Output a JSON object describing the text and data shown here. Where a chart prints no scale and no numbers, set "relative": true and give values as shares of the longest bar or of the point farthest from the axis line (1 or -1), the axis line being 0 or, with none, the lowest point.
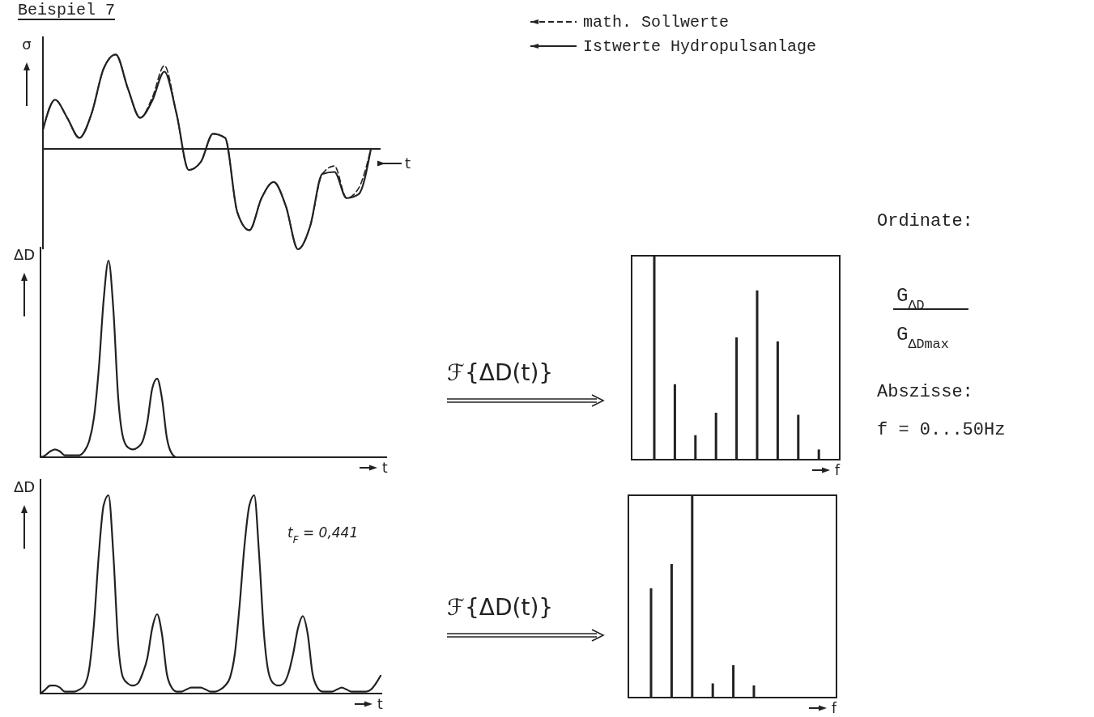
{
  "chart_data": [
    {
      "type": "line",
      "title": "Beispiel 7",
      "ylabel": "σ",
      "xlabel": "t",
      "relative": true,
      "legend": "top right",
      "categories": [
        null,
        null,
        null,
        null,
        null,
        null,
        null,
        null,
        null,
        null,
        null,
        null,
        null,
        null,
        null,
        null,
        null,
        null,
        null,
        null,
        null,
        null,
        null,
        null,
        null,
        null,
        null,
        null
      ],
      "series": [
        {
          "name": "math. Sollwerte",
          "color": "#222222",
          "line_style": "dashed",
          "values": [
            0.19,
            0.49,
            0.31,
            0.11,
            0.35,
            0.8,
            0.94,
            0.6,
            0.31,
            0.51,
            0.83,
            0.35,
            -0.21,
            -0.13,
            0.15,
            0.11,
            -0.63,
            -0.81,
            -0.49,
            -0.33,
            -0.57,
            -1,
            -0.77,
            -0.25,
            -0.17,
            -0.49,
            -0.39,
            0
          ]
        },
        {
          "name": "Istwerte Hydropulsanlage",
          "color": "#222222",
          "line_style": "solid",
          "values": [
            0.19,
            0.49,
            0.31,
            0.11,
            0.35,
            0.8,
            0.94,
            0.6,
            0.31,
            0.48,
            0.77,
            0.35,
            -0.21,
            -0.13,
            0.15,
            0.11,
            -0.63,
            -0.81,
            -0.49,
            -0.33,
            -0.57,
            -1,
            -0.77,
            -0.25,
            -0.23,
            -0.49,
            -0.45,
            0
          ]
        }
      ]
    },
    {
      "type": "line",
      "ylabel": "ΔD",
      "xlabel": "t",
      "relative": true,
      "categories": [
        null,
        null,
        null,
        null,
        null,
        null,
        null,
        null,
        null,
        null,
        null,
        null,
        null,
        null,
        null,
        null,
        null,
        null,
        null,
        null,
        null,
        null,
        null,
        null,
        null,
        null,
        null,
        null,
        null,
        null,
        null,
        null,
        null,
        null,
        null,
        null,
        null,
        null,
        null,
        null,
        null,
        null,
        null,
        null,
        null,
        null,
        null,
        null,
        null,
        null,
        null,
        null,
        null,
        null,
        null,
        null,
        null,
        null,
        null,
        null,
        null,
        null,
        null,
        null,
        null,
        null,
        null,
        null,
        null,
        null,
        null,
        null
      ],
      "series": [
        {
          "color": "#222222",
          "values": [
            0,
            0.01,
            0.03,
            0.04,
            0.03,
            0.01,
            0.01,
            0.01,
            0.01,
            0.03,
            0.08,
            0.2,
            0.45,
            0.8,
            1,
            0.75,
            0.3,
            0.1,
            0.05,
            0.04,
            0.05,
            0.08,
            0.18,
            0.35,
            0.4,
            0.3,
            0.1,
            0.02,
            0,
            0,
            0,
            0,
            0,
            0,
            0,
            0,
            0,
            0,
            0,
            0,
            0,
            0,
            0,
            0,
            0,
            0,
            0,
            0,
            0,
            0,
            0,
            0,
            0,
            0,
            0,
            0,
            0,
            0,
            0,
            0,
            0,
            0,
            0,
            0,
            0,
            0,
            0,
            0,
            0,
            0,
            0,
            0
          ]
        }
      ]
    },
    {
      "type": "line",
      "ylabel": "ΔD",
      "xlabel": "t",
      "relative": true,
      "annotations": [
        "t$_{F}$ = 0,441"
      ],
      "categories": [
        null,
        null,
        null,
        null,
        null,
        null,
        null,
        null,
        null,
        null,
        null,
        null,
        null,
        null,
        null,
        null,
        null,
        null,
        null,
        null,
        null,
        null,
        null,
        null,
        null,
        null,
        null,
        null,
        null,
        null,
        null,
        null,
        null,
        null,
        null,
        null,
        null,
        null,
        null,
        null,
        null,
        null,
        null,
        null,
        null,
        null,
        null,
        null,
        null,
        null,
        null,
        null,
        null,
        null,
        null,
        null,
        null,
        null,
        null,
        null,
        null,
        null,
        null,
        null,
        null,
        null,
        null,
        null,
        null,
        null,
        null
      ],
      "series": [
        {
          "color": "#222222",
          "values": [
            0,
            0.02,
            0.04,
            0.04,
            0.03,
            0.01,
            0.01,
            0.01,
            0.02,
            0.04,
            0.12,
            0.35,
            0.7,
            0.95,
            1,
            0.7,
            0.25,
            0.08,
            0.05,
            0.04,
            0.05,
            0.1,
            0.18,
            0.33,
            0.4,
            0.3,
            0.1,
            0.03,
            0.01,
            0.01,
            0.02,
            0.03,
            0.03,
            0.03,
            0.02,
            0.01,
            0.01,
            0.02,
            0.04,
            0.08,
            0.2,
            0.45,
            0.75,
            0.95,
            1,
            0.7,
            0.3,
            0.1,
            0.05,
            0.04,
            0.05,
            0.1,
            0.2,
            0.33,
            0.39,
            0.3,
            0.1,
            0.03,
            0.01,
            0.01,
            0.01,
            0.02,
            0.03,
            0.02,
            0.01,
            0.01,
            0.01,
            0.01,
            0.02,
            0.05,
            0.09
          ]
        }
      ]
    },
    {
      "type": "bar",
      "xlabel": "f",
      "relative": true,
      "annotations": [
        "ℱ{ΔD(t)}",
        "Ordinate:",
        "G$_{ΔD}$",
        "G$_{ΔDmax}$",
        "Abszisse:",
        "f = 0...50Hz"
      ],
      "categories": [
        null,
        null,
        null,
        null,
        null,
        null,
        null,
        null,
        null
      ],
      "values": [
        1,
        0.37,
        0.12,
        0.23,
        0.6,
        0.83,
        0.58,
        0.22,
        0.05
      ],
      "color": "#222222"
    },
    {
      "type": "bar",
      "xlabel": "f",
      "relative": true,
      "annotations": [
        "ℱ{ΔD(t)}"
      ],
      "categories": [
        null,
        null,
        null,
        null,
        null,
        null
      ],
      "values": [
        0.54,
        0.66,
        1,
        0.07,
        0.16,
        0.06
      ],
      "color": "#222222"
    }
  ]
}
